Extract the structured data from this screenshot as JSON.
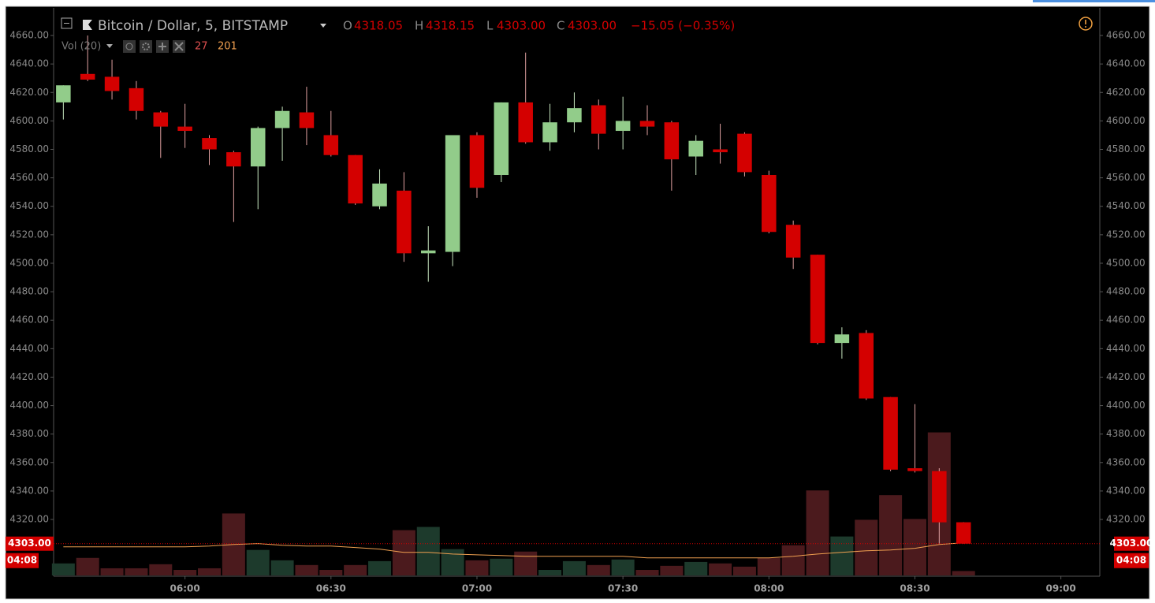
{
  "chart_data": {
    "type": "candlestick",
    "title": "Bitcoin / Dollar, 5, BITSTAMP",
    "ohlc_legend": [
      {
        "key": "O",
        "value": "4318.05"
      },
      {
        "key": "H",
        "value": "4318.15"
      },
      {
        "key": "L",
        "value": "4303.00"
      },
      {
        "key": "C",
        "value": "4303.00"
      }
    ],
    "change": "−15.05 (−0.35%)",
    "volume_legend": {
      "name": "Vol (20)",
      "last": "27",
      "ma": "201"
    },
    "last_price_label": "4303.00",
    "countdown": "04:08",
    "x": [
      "05:35",
      "05:40",
      "05:45",
      "05:50",
      "05:55",
      "06:00",
      "06:05",
      "06:10",
      "06:15",
      "06:20",
      "06:25",
      "06:30",
      "06:35",
      "06:40",
      "06:45",
      "06:50",
      "06:55",
      "07:00",
      "07:05",
      "07:10",
      "07:15",
      "07:20",
      "07:25",
      "07:30",
      "07:35",
      "07:40",
      "07:45",
      "07:50",
      "07:55",
      "08:00",
      "08:05",
      "08:10",
      "08:15",
      "08:20",
      "08:25",
      "08:30",
      "08:35",
      "08:40"
    ],
    "open": [
      4613,
      4633,
      4631,
      4623,
      4606,
      4596,
      4588,
      4578,
      4568,
      4595,
      4606,
      4590,
      4576,
      4540,
      4551,
      4507,
      4508,
      4590,
      4562,
      4613,
      4585,
      4599,
      4611,
      4593,
      4600,
      4599,
      4575,
      4580,
      4591,
      4562,
      4527,
      4506,
      4444,
      4451,
      4406,
      4356,
      4354,
      4318.05
    ],
    "high": [
      4625,
      4660,
      4643,
      4628,
      4607,
      4612,
      4590,
      4579,
      4596,
      4610,
      4624,
      4607,
      4576,
      4566,
      4564,
      4526,
      4590,
      4592,
      4613,
      4648,
      4612,
      4620,
      4615,
      4617,
      4611,
      4600,
      4590,
      4598,
      4592,
      4565,
      4530,
      4506,
      4455,
      4453,
      4406,
      4401,
      4356,
      4318.15
    ],
    "low": [
      4601,
      4628,
      4615,
      4601,
      4574,
      4581,
      4569,
      4529,
      4538,
      4572,
      4583,
      4575,
      4541,
      4538,
      4501,
      4487,
      4498,
      4546,
      4557,
      4584,
      4579,
      4592,
      4580,
      4580,
      4590,
      4551,
      4562,
      4570,
      4561,
      4521,
      4496,
      4443,
      4433,
      4404,
      4354,
      4353,
      4303,
      4303
    ],
    "close": [
      4625,
      4629,
      4621,
      4607,
      4596,
      4593,
      4580,
      4568,
      4595,
      4607,
      4595,
      4576,
      4542,
      4556,
      4507,
      4509,
      4590,
      4553,
      4613,
      4585,
      4599,
      4609,
      4591,
      4600,
      4596,
      4573,
      4586,
      4578,
      4564,
      4522,
      4504,
      4444,
      4450,
      4405,
      4355,
      4354,
      4318,
      4303
    ],
    "volume": [
      74,
      108,
      44,
      44,
      69,
      34,
      44,
      382,
      157,
      93,
      64,
      34,
      64,
      88,
      279,
      299,
      162,
      93,
      103,
      147,
      34,
      88,
      64,
      98,
      34,
      59,
      83,
      74,
      54,
      108,
      186,
      524,
      240,
      343,
      495,
      348,
      882,
      27
    ],
    "volume_ma": [
      176,
      176,
      176,
      176,
      176,
      176,
      181,
      191,
      196,
      186,
      181,
      181,
      172,
      162,
      142,
      142,
      132,
      127,
      123,
      118,
      118,
      118,
      118,
      118,
      108,
      108,
      108,
      108,
      108,
      108,
      118,
      132,
      142,
      152,
      157,
      167,
      191,
      201
    ],
    "xlim": [
      "05:33",
      "09:08"
    ],
    "xticks": [
      "06:00",
      "06:30",
      "07:00",
      "07:30",
      "08:00",
      "08:30",
      "09:00"
    ],
    "ylim": [
      4280.7,
      4679.4
    ],
    "yticks": [
      {
        "value": 4320,
        "label": "4320.00"
      },
      {
        "value": 4340,
        "label": "4340.00"
      },
      {
        "value": 4360,
        "label": "4360.00"
      },
      {
        "value": 4380,
        "label": "4380.00"
      },
      {
        "value": 4400,
        "label": "4400.00"
      },
      {
        "value": 4420,
        "label": "4420.00"
      },
      {
        "value": 4440,
        "label": "4440.00"
      },
      {
        "value": 4460,
        "label": "4460.00"
      },
      {
        "value": 4480,
        "label": "4480.00"
      },
      {
        "value": 4500,
        "label": "4500.00"
      },
      {
        "value": 4520,
        "label": "4520.00"
      },
      {
        "value": 4540,
        "label": "4540.00"
      },
      {
        "value": 4560,
        "label": "4560.00"
      },
      {
        "value": 4580,
        "label": "4580.00"
      },
      {
        "value": 4600,
        "label": "4600.00"
      },
      {
        "value": 4620,
        "label": "4620.00"
      },
      {
        "value": 4640,
        "label": "4640.00"
      },
      {
        "value": 4660,
        "label": "4660.00"
      }
    ],
    "volume_ylim": [
      0,
      3500
    ],
    "up_color": "#92cc8a",
    "down_color": "#d40000",
    "volume_up_color": "#1d3a2c",
    "volume_down_color": "#4b1a1d",
    "volume_ma_color": "#f0a050",
    "grid": false
  }
}
